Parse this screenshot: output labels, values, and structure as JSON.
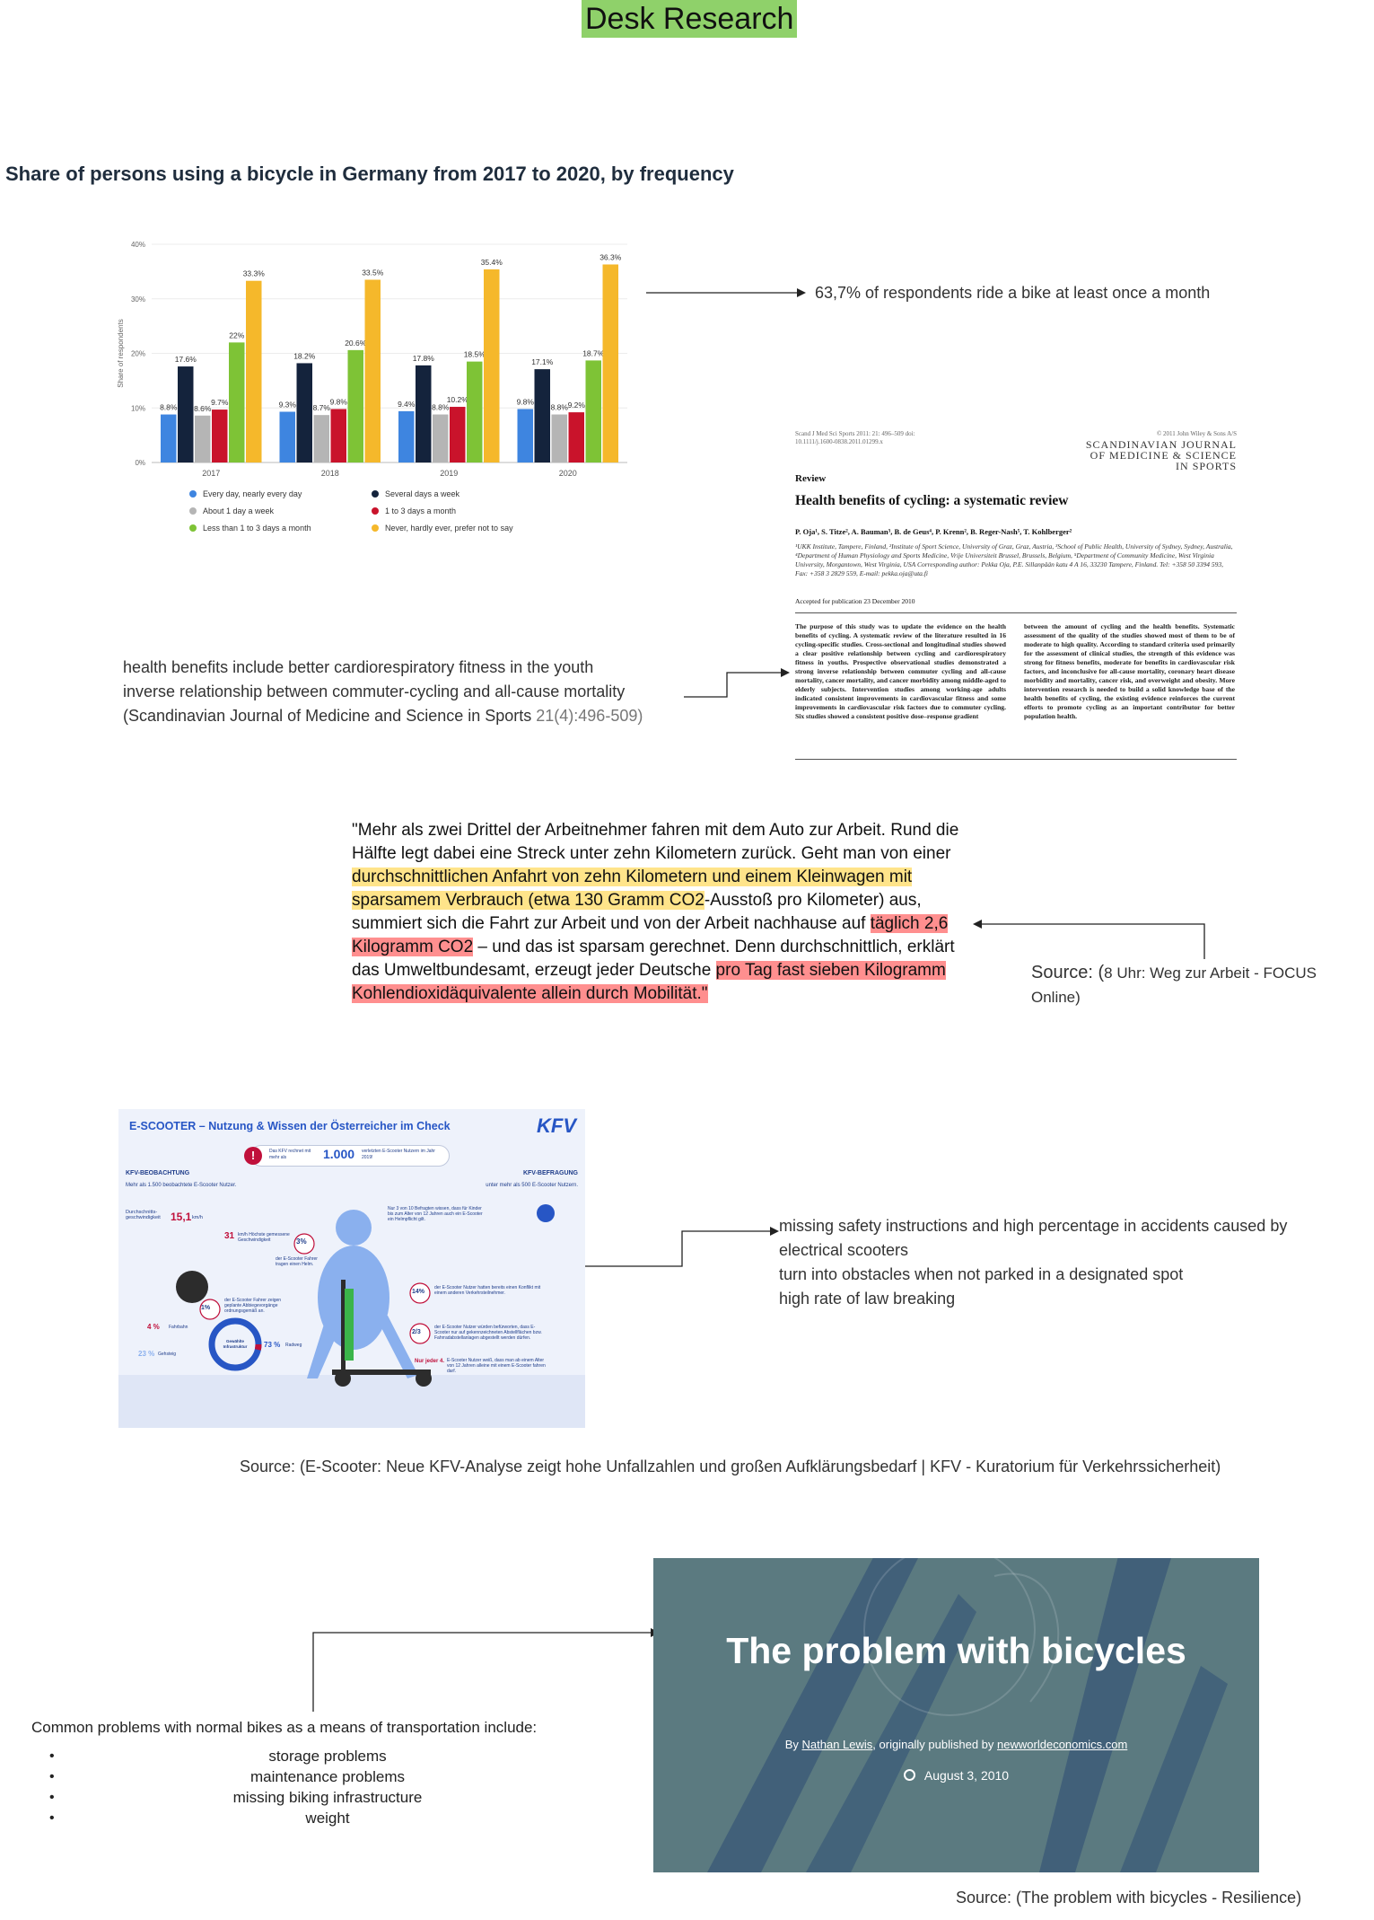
{
  "title": "Desk Research",
  "chart_section": {
    "heading": "Share of persons using a bicycle in Germany from 2017 to 2020, by frequency",
    "note": "63,7% of respondents ride a bike at least once a month"
  },
  "chart_data": {
    "type": "bar",
    "ylabel": "Share of respondents",
    "ylim": [
      0,
      40
    ],
    "yticks": [
      "0%",
      "10%",
      "20%",
      "30%",
      "40%"
    ],
    "categories": [
      "2017",
      "2018",
      "2019",
      "2020"
    ],
    "legend_position": "bottom",
    "series": [
      {
        "name": "Every day, nearly every day",
        "color": "#3e85e0",
        "values": [
          8.8,
          9.3,
          9.4,
          9.8
        ],
        "labels": [
          "8.8%",
          "9.3%",
          "9.4%",
          "9.8%"
        ]
      },
      {
        "name": "Several days a week",
        "color": "#14233c",
        "values": [
          17.6,
          18.2,
          17.8,
          17.1
        ],
        "labels": [
          "17.6%",
          "18.2%",
          "17.8%",
          "17.1%"
        ]
      },
      {
        "name": "About 1 day a week",
        "color": "#b5b5b5",
        "values": [
          8.6,
          8.7,
          8.8,
          8.8
        ],
        "labels": [
          "8.6%",
          "8.7%",
          "8.8%",
          "8.8%"
        ]
      },
      {
        "name": "1 to 3 days a month",
        "color": "#c9132b",
        "values": [
          9.7,
          9.8,
          10.2,
          9.2
        ],
        "labels": [
          "9.7%",
          "9.8%",
          "10.2%",
          "9.2%"
        ]
      },
      {
        "name": "Less than 1 to 3 days a month",
        "color": "#7ec336",
        "values": [
          22,
          20.6,
          18.5,
          18.7
        ],
        "labels": [
          "22%",
          "20.6%",
          "18.5%",
          "18.7%"
        ]
      },
      {
        "name": "Never, hardly ever, prefer not to say",
        "color": "#f5b82b",
        "values": [
          33.3,
          33.5,
          35.4,
          36.3
        ],
        "labels": [
          "33.3%",
          "33.5%",
          "35.4%",
          "36.3%"
        ]
      }
    ]
  },
  "health": {
    "line1": "health benefits include better cardiorespiratory fitness in the youth",
    "line2": "inverse relationship between commuter-cycling and all-cause mortality",
    "line3_main": "(Scandinavian Journal of Medicine and Science in Sports ",
    "line3_muted": "21(4):496-509)"
  },
  "paper": {
    "meta_left": "Scand J Med Sci Sports 2011: 21: 496–509 doi: 10.1111/j.1600-0838.2011.01299.x",
    "meta_right": "© 2011 John Wiley & Sons A/S",
    "journal": "SCANDINAVIAN JOURNAL OF MEDICINE & SCIENCE IN SPORTS",
    "section": "Review",
    "title": "Health benefits of cycling: a systematic review",
    "authors": "P. Oja¹, S. Titze², A. Bauman³, B. de Geus⁴, P. Krenn², B. Reger-Nash⁵, T. Kohlberger²",
    "affiliations": "¹UKK Institute, Tampere, Finland, ²Institute of Sport Science, University of Graz, Graz, Austria, ³School of Public Health, University of Sydney, Sydney, Australia, ⁴Department of Human Physiology and Sports Medicine, Vrije Universiteit Brussel, Brussels, Belgium, ⁵Department of Community Medicine, West Virginia University, Morgantown, West Virginia, USA Corresponding author: Pekka Oja, P.E. Sillanpään katu 4 A 16, 33230 Tampere, Finland. Tel: +358 50 3394 593, Fax: +358 3 2829 559, E-mail: pekka.oja@uta.fi",
    "accepted": "Accepted for publication 23 December 2010",
    "col1": "The purpose of this study was to update the evidence on the health benefits of cycling. A systematic review of the literature resulted in 16 cycling-specific studies. Cross-sectional and longitudinal studies showed a clear positive relationship between cycling and cardiorespiratory fitness in youths. Prospective observational studies demonstrated a strong inverse relationship between commuter cycling and all-cause mortality, cancer mortality, and cancer morbidity among middle-aged to elderly subjects. Intervention studies among working-age adults indicated consistent improvements in cardiovascular fitness and some improvements in cardiovascular risk factors due to commuter cycling. Six studies showed a consistent positive dose–response gradient",
    "col2": "between the amount of cycling and the health benefits. Systematic assessment of the quality of the studies showed most of them to be of moderate to high quality. According to standard criteria used primarily for the assessment of clinical studies, the strength of this evidence was strong for fitness benefits, moderate for benefits in cardiovascular risk factors, and inconclusive for all-cause mortality, coronary heart disease morbidity and mortality, cancer risk, and overweight and obesity. More intervention research is needed to build a solid knowledge base of the health benefits of cycling, the existing evidence reinforces the current efforts to promote cycling as an important contributor for better population health."
  },
  "quote": {
    "p1": "\"Mehr als zwei Drittel der Arbeitnehmer fahren mit dem Auto zur Arbeit. Rund die Hälfte legt dabei eine Streck unter zehn Kilometern zurück. Geht man von einer ",
    "hl1": "durchschnittlichen Anfahrt von zehn Kilometern und einem Kleinwagen mit sparsamem Verbrauch (etwa 130 Gramm CO2",
    "p2": "-Ausstoß pro Kilometer) aus, summiert sich die Fahrt zur Arbeit und von der Arbeit nachhause auf ",
    "hl2": "täglich 2,6 Kilogramm CO2",
    "p3": " – und das ist sparsam gerechnet. Denn durchschnittlich, erklärt das Umweltbundesamt, erzeugt jeder Deutsche ",
    "hl3": "pro Tag fast sieben Kilogramm Kohlendioxidäquivalente allein durch Mobilität.\"",
    "source_label": "Source: (",
    "source_text": "8 Uhr: Weg zur Arbeit - FOCUS Online)"
  },
  "kfv": {
    "title": "E-SCOOTER – Nutzung & Wissen der Österreicher im Check",
    "logo": "KFV",
    "banner_text": "Das KFV rechnet mit mehr als",
    "banner_number": "1.000",
    "banner_suffix": "verletzten E-Scooter Nutzern im Jahr 2019!",
    "left_header": "KFV-BEOBACHTUNG",
    "left_sub": "Mehr als 1.500 beobachtete E-Scooter Nutzer.",
    "right_header": "KFV-BEFRAGUNG",
    "right_sub": "unter mehr als 500 E-Scooter Nutzern.",
    "stat_speed_label": "Durchschnitts-geschwindigkeit",
    "stat_speed": "15,1",
    "stat_speed_unit": "km/h",
    "stat_max": "31",
    "stat_max_label": "km/h Höchste gemessene Geschwindigkeit",
    "stat_3": "3%",
    "stat_3_label": "der E-Scooter Fahrer tragen einen Helm.",
    "stat_1": "1%",
    "stat_1_label": "der E-Scooter Fahrer zeigen geplante Abbiegevorgänge ordnungsgemäß an.",
    "stat_kids": "Nur 3 von 10 Befragten wissen, dass für Kinder bis zum Alter von 12 Jahren auch ein E-Scooter ein Helmpflicht gilt.",
    "stat_14": "14%",
    "stat_14_label": "der E-Scooter Nutzer hatten bereits einen Konflikt mit einem anderen Verkehrsteilnehmer.",
    "stat_23": "2/3",
    "stat_23_label": "der E-Scooter Nutzer würden befürworten, dass E-Scooter nur auf gekennzeichneten Abstellflächen bzw. Fahrradabstellanlagen abgestellt werden dürfen.",
    "stat_4": "Nur jeder 4.",
    "stat_4_label": "E-Scooter Nutzer weiß, dass man ab einem Alter von 12 Jahren alleine mit einem E-Scooter fahren darf.",
    "donut_4": "4 %",
    "donut_4_label": "Fahrbahn",
    "donut_23": "23 %",
    "donut_23_label": "Gehsteig",
    "donut_73": "73 %",
    "donut_73_label": "Radweg",
    "donut_center": "Gewählte Infrastruktur",
    "note": "missing safety instructions and high percentage in accidents caused by",
    "note2": "electrical scooters",
    "note3": "turn into obstacles when not parked in a designated spot",
    "note4": "high rate of law breaking",
    "source": "Source: (E-Scooter: Neue KFV-Analyse zeigt hohe Unfallzahlen und großen Aufklärungsbedarf | KFV - Kuratorium für Verkehrssicherheit)"
  },
  "bikes": {
    "intro": "Common problems with normal bikes as a means of transportation include:",
    "items": [
      "storage problems",
      "maintenance problems",
      "missing biking infrastructure",
      "weight"
    ],
    "article_title": "The problem with bicycles",
    "article_by": "By",
    "article_author": "Nathan Lewis",
    "article_mid": ", originally published by",
    "article_site": "newworldeconomics.com",
    "article_date": "August 3, 2010",
    "source": "Source: (The problem with bicycles - Resilience)"
  }
}
